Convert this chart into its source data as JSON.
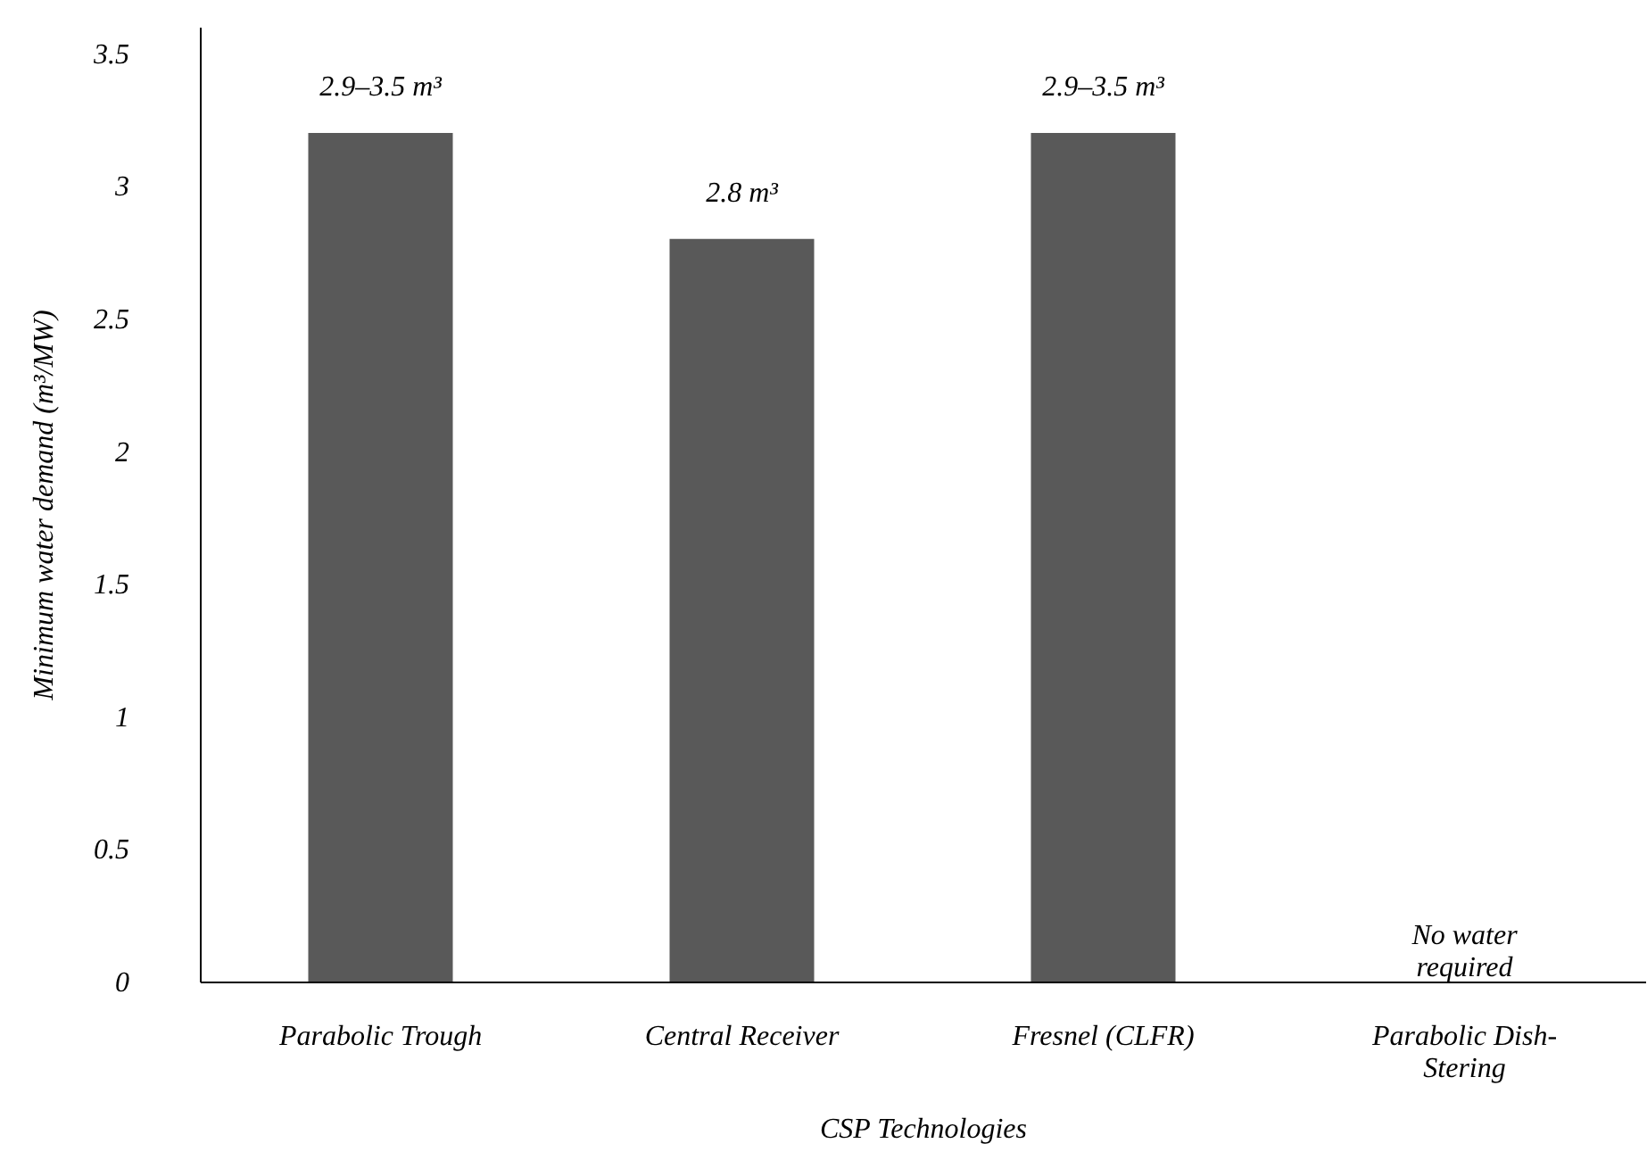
{
  "chart_data": {
    "type": "bar",
    "xlabel": "CSP Technologies",
    "ylabel": "Minimum water demand (m³/MW)",
    "categories": [
      "Parabolic Trough",
      "Central Receiver",
      "Fresnel (CLFR)",
      "Parabolic Dish-Stering"
    ],
    "values": [
      3.2,
      2.8,
      3.2,
      0
    ],
    "value_labels": [
      "2.9–3.5 m³",
      "2.8 m³",
      "2.9–3.5 m³",
      "No water required"
    ],
    "color": "#595959",
    "ylim": [
      0,
      3.6
    ],
    "yticks": [
      0,
      0.5,
      1,
      1.5,
      2,
      2.5,
      3,
      3.5
    ],
    "grid": false
  }
}
